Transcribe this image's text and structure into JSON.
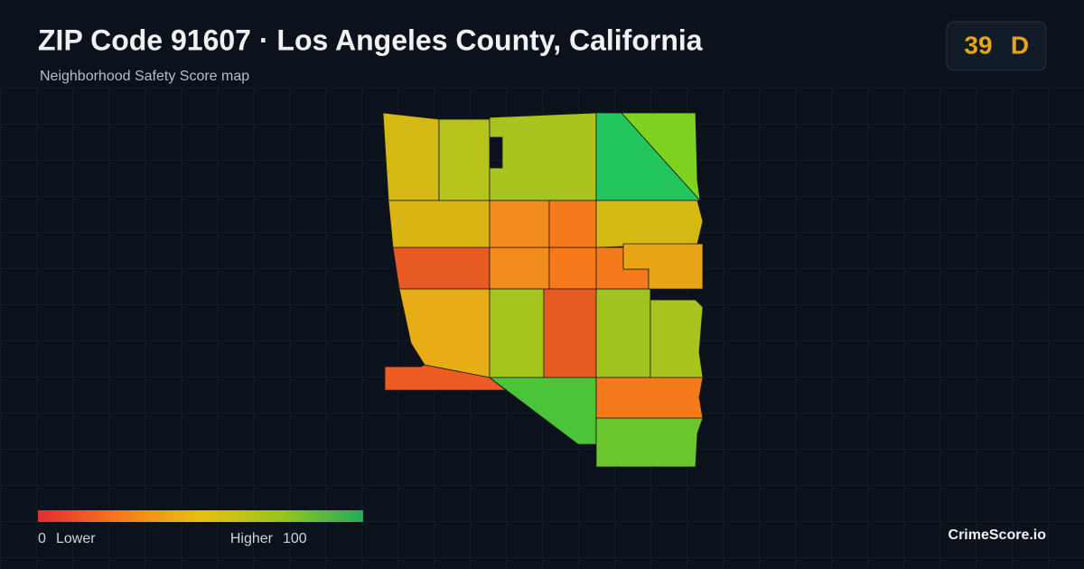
{
  "header": {
    "title": "ZIP Code 91607 · Los Angeles County, California",
    "subtitle": "Neighborhood Safety Score map"
  },
  "badge": {
    "score": "39",
    "grade": "D"
  },
  "legend": {
    "min": "0",
    "min_label": "Lower",
    "max_label": "Higher",
    "max": "100"
  },
  "brand": "CrimeScore.io"
}
